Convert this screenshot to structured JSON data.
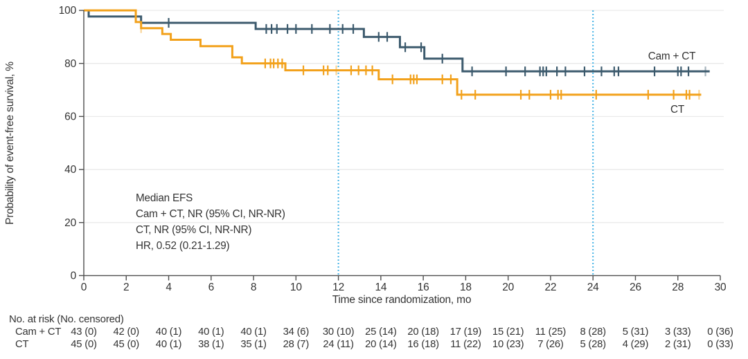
{
  "chart_data": {
    "type": "line",
    "subtype": "kaplan-meier-step",
    "title": "",
    "xlabel": "Time since randomization, mo",
    "ylabel": "Probability of event-free survival, %",
    "xlim": [
      0,
      30
    ],
    "ylim": [
      0,
      100
    ],
    "xticks": [
      0,
      2,
      4,
      6,
      8,
      10,
      12,
      14,
      16,
      18,
      20,
      22,
      24,
      26,
      28,
      30
    ],
    "yticks": [
      0,
      20,
      40,
      60,
      80,
      100
    ],
    "grid": "horizontal-light",
    "legend_position": "curve-end-labels",
    "reference_lines": {
      "x_values": [
        12,
        24
      ],
      "style": "dotted",
      "color": "#45b4e6"
    },
    "series": [
      {
        "name": "Cam + CT",
        "color": "#3c5a6d",
        "steps": [
          [
            0,
            100
          ],
          [
            0.23,
            97.7
          ],
          [
            2.7,
            95.3
          ],
          [
            8.1,
            93.0
          ],
          [
            13.2,
            90.0
          ],
          [
            14.9,
            86.1
          ],
          [
            16.05,
            81.8
          ],
          [
            17.85,
            77.0
          ]
        ],
        "end_time": 29.5,
        "censor_marks": [
          [
            4.0,
            95.3
          ],
          [
            8.6,
            93
          ],
          [
            8.85,
            93
          ],
          [
            9.1,
            93
          ],
          [
            9.6,
            93
          ],
          [
            10.0,
            93
          ],
          [
            10.75,
            93
          ],
          [
            11.6,
            93
          ],
          [
            12.2,
            93
          ],
          [
            12.7,
            93
          ],
          [
            13.9,
            90
          ],
          [
            14.3,
            90
          ],
          [
            15.15,
            86.1
          ],
          [
            15.9,
            86.1
          ],
          [
            16.9,
            81.8
          ],
          [
            18.3,
            77
          ],
          [
            19.9,
            77
          ],
          [
            20.8,
            77
          ],
          [
            21.5,
            77
          ],
          [
            21.65,
            77
          ],
          [
            21.8,
            77
          ],
          [
            22.3,
            77
          ],
          [
            22.7,
            77
          ],
          [
            23.6,
            77
          ],
          [
            24.4,
            77
          ],
          [
            25.0,
            77
          ],
          [
            25.2,
            77
          ],
          [
            26.9,
            77
          ],
          [
            28.0,
            77
          ],
          [
            28.15,
            77
          ],
          [
            28.5,
            77
          ],
          [
            29.3,
            77,
            1
          ]
        ]
      },
      {
        "name": "CT",
        "color": "#f2a11b",
        "steps": [
          [
            0,
            100
          ],
          [
            2.45,
            95.6
          ],
          [
            2.7,
            93.3
          ],
          [
            3.7,
            91.1
          ],
          [
            4.1,
            88.9
          ],
          [
            5.5,
            86.5
          ],
          [
            7.0,
            82.3
          ],
          [
            7.45,
            80.0
          ],
          [
            9.5,
            77.4
          ],
          [
            13.9,
            74.0
          ],
          [
            17.6,
            68.2
          ]
        ],
        "end_time": 29.1,
        "censor_marks": [
          [
            2.7,
            93.3,
            1
          ],
          [
            8.55,
            80
          ],
          [
            8.8,
            80
          ],
          [
            8.95,
            80
          ],
          [
            9.15,
            80
          ],
          [
            9.35,
            80
          ],
          [
            10.35,
            77.4
          ],
          [
            11.3,
            77.4
          ],
          [
            11.5,
            77.4
          ],
          [
            11.9,
            77.4,
            1
          ],
          [
            12.6,
            77.4
          ],
          [
            12.95,
            77.4
          ],
          [
            13.3,
            77.4
          ],
          [
            13.6,
            77.4
          ],
          [
            14.55,
            74
          ],
          [
            15.4,
            74
          ],
          [
            15.55,
            74
          ],
          [
            15.7,
            74
          ],
          [
            16.9,
            74
          ],
          [
            17.3,
            74
          ],
          [
            17.8,
            68.2
          ],
          [
            18.45,
            68.2
          ],
          [
            20.6,
            68.2
          ],
          [
            21.0,
            68.2
          ],
          [
            22.0,
            68.2
          ],
          [
            22.35,
            68.2
          ],
          [
            22.5,
            68.2
          ],
          [
            24.15,
            68.2
          ],
          [
            26.6,
            68.2
          ],
          [
            27.8,
            68.2
          ],
          [
            28.4,
            68.2
          ],
          [
            28.55,
            68.2
          ],
          [
            29.0,
            68.2,
            1
          ]
        ]
      }
    ],
    "annotation": {
      "lines": [
        "Median EFS",
        "Cam + CT, NR (95% CI, NR-NR)",
        "CT, NR (95% CI, NR-NR)",
        "HR, 0.52 (0.21-1.29)"
      ]
    },
    "risk_table": {
      "header": "No. at risk (No. censored)",
      "times": [
        0,
        2,
        4,
        6,
        8,
        10,
        12,
        14,
        16,
        18,
        20,
        22,
        24,
        26,
        28,
        30
      ],
      "rows": [
        {
          "label": "Cam + CT",
          "values": [
            "43 (0)",
            "42 (0)",
            "40 (1)",
            "40 (1)",
            "40 (1)",
            "34 (6)",
            "30 (10)",
            "25 (14)",
            "20 (18)",
            "17 (19)",
            "15 (21)",
            "11 (25)",
            "8 (28)",
            "5 (31)",
            "3 (33)",
            "0 (36)"
          ]
        },
        {
          "label": "CT",
          "values": [
            "45 (0)",
            "45 (0)",
            "40 (1)",
            "38 (1)",
            "35 (1)",
            "28 (7)",
            "24 (11)",
            "20 (14)",
            "16 (18)",
            "11 (22)",
            "10 (23)",
            "7 (26)",
            "5 (28)",
            "4 (29)",
            "2 (31)",
            "0 (33)"
          ]
        }
      ]
    },
    "colors": {
      "axis": "#4d4d4d",
      "gridline": "#e9e9e9",
      "text": "#333333",
      "reference": "#45b4e6"
    }
  }
}
